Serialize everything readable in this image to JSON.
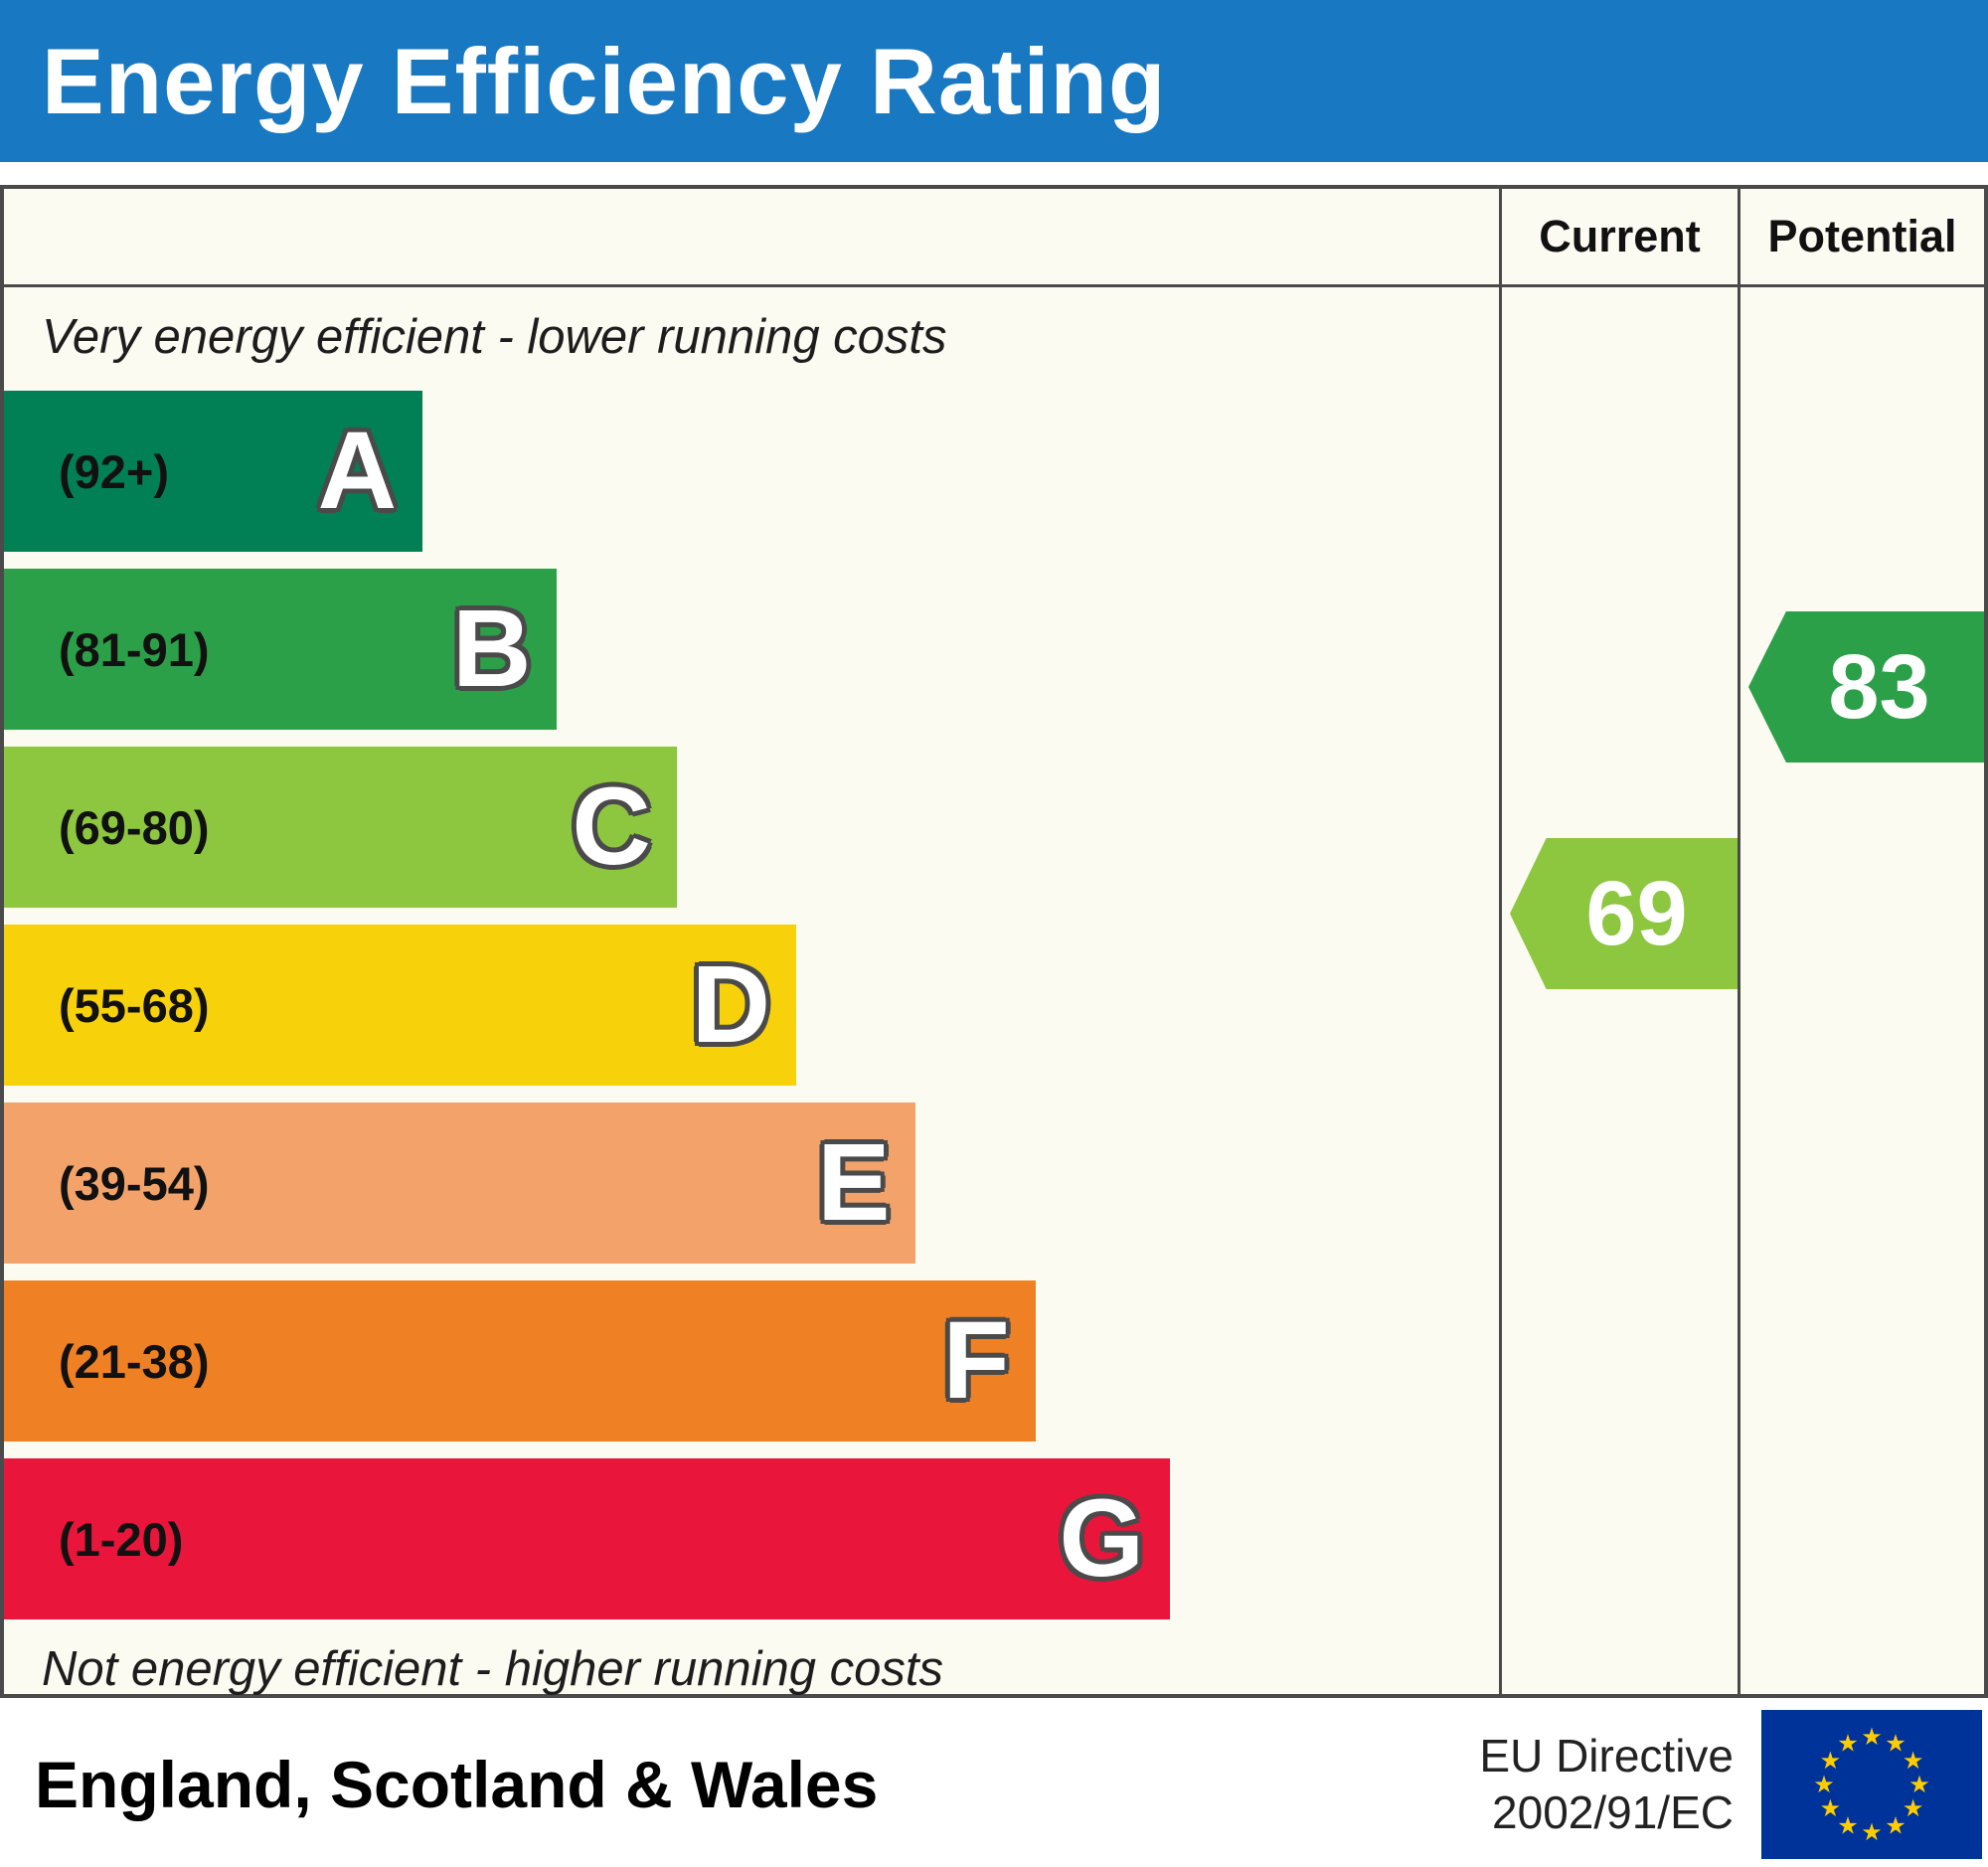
{
  "title": "Energy Efficiency Rating",
  "colors": {
    "title_bar_bg": "#1878c1",
    "border": "#4a4a4a"
  },
  "header": {
    "current_label": "Current",
    "potential_label": "Potential"
  },
  "notes": {
    "top": "Very energy efficient - lower running costs",
    "bottom": "Not energy efficient - higher running costs"
  },
  "footer": {
    "region": "England, Scotland & Wales",
    "directive_line1": "EU Directive",
    "directive_line2": "2002/91/EC",
    "flag_icon": "eu-flag-icon"
  },
  "chart_data": {
    "type": "bar",
    "title": "Energy Efficiency Rating",
    "categories": [
      "A",
      "B",
      "C",
      "D",
      "E",
      "F",
      "G"
    ],
    "bands": [
      {
        "letter": "A",
        "range": "(92+)",
        "min": 92,
        "max": 100,
        "color": "#008054",
        "width_pct": 28
      },
      {
        "letter": "B",
        "range": "(81-91)",
        "min": 81,
        "max": 91,
        "color": "#2c9f49",
        "width_pct": 37
      },
      {
        "letter": "C",
        "range": "(69-80)",
        "min": 69,
        "max": 80,
        "color": "#8dc63f",
        "width_pct": 45
      },
      {
        "letter": "D",
        "range": "(55-68)",
        "min": 55,
        "max": 68,
        "color": "#f7d10a",
        "width_pct": 53
      },
      {
        "letter": "E",
        "range": "(39-54)",
        "min": 39,
        "max": 54,
        "color": "#f3a36a",
        "width_pct": 61
      },
      {
        "letter": "F",
        "range": "(21-38)",
        "min": 21,
        "max": 38,
        "color": "#ef8023",
        "width_pct": 69
      },
      {
        "letter": "G",
        "range": "(1-20)",
        "min": 1,
        "max": 20,
        "color": "#e9153b",
        "width_pct": 78
      }
    ],
    "current": {
      "value": 69,
      "band": "C",
      "color": "#8dc63f"
    },
    "potential": {
      "value": 83,
      "band": "B",
      "color": "#2c9f49"
    }
  }
}
